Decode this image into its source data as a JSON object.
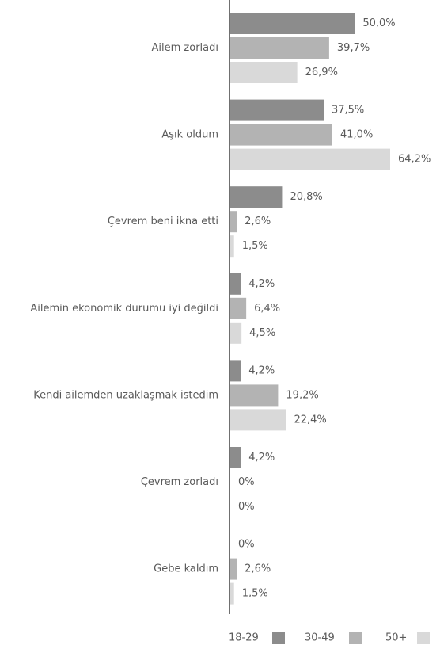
{
  "chart_data": {
    "type": "barh",
    "categories": [
      "Ailem zorladı",
      "Aşık oldum",
      "Çevrem beni ikna etti",
      "Ailemin ekonomik durumu iyi değildi",
      "Kendi ailemden uzaklaşmak istedim",
      "Çevrem zorladı",
      "Gebe kaldım"
    ],
    "series": [
      {
        "name": "18-29",
        "color": "#8c8c8c",
        "values": [
          50.0,
          37.5,
          20.8,
          4.2,
          4.2,
          4.2,
          0
        ],
        "value_labels": [
          "50,0%",
          "37,5%",
          "20,8%",
          "4,2%",
          "4,2%",
          "4,2%",
          "0%"
        ]
      },
      {
        "name": "30-49",
        "color": "#b3b3b3",
        "values": [
          39.7,
          41.0,
          2.6,
          6.4,
          19.2,
          0,
          2.6
        ],
        "value_labels": [
          "39,7%",
          "41,0%",
          "2,6%",
          "6,4%",
          "19,2%",
          "0%",
          "2,6%"
        ]
      },
      {
        "name": "50+",
        "color": "#d9d9d9",
        "values": [
          26.9,
          64.2,
          1.5,
          4.5,
          22.4,
          0,
          1.5
        ],
        "value_labels": [
          "26,9%",
          "64,2%",
          "1,5%",
          "4,5%",
          "22,4%",
          "0%",
          "1,5%"
        ]
      }
    ],
    "legend": "bottom-right"
  }
}
